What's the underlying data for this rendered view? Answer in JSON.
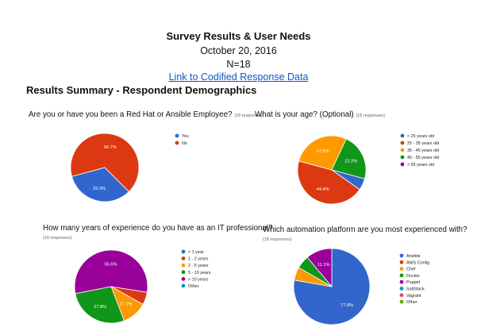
{
  "doc": {
    "title": "Survey Results & User Needs",
    "date": "October 20, 2016",
    "count": "N=18",
    "link_text": "Link to Codified Response Data",
    "section_heading": "Results Summary - Respondent Demographics"
  },
  "questions": [
    {
      "text": "Are you or have you been a Red Hat or Ansible Employee?",
      "responses": "(18 responses)"
    },
    {
      "text": "What is your age? (Optional)",
      "responses": "(18 responses)"
    },
    {
      "text": "How many years of experience do you have as an IT professional?",
      "responses": "(18 responses)"
    },
    {
      "text": "Which automation platform are you most experienced with?",
      "responses": "(18 responses)"
    }
  ],
  "chart_data": [
    {
      "type": "pie",
      "labels": [
        "Yes",
        "No"
      ],
      "values": [
        33.3,
        66.7
      ],
      "data_labels": [
        "33.3%",
        "66.7%"
      ],
      "colors": [
        "#3366cc",
        "#dc3912"
      ],
      "legend": "right"
    },
    {
      "type": "pie",
      "labels": [
        "< 25 years old",
        "25 - 35 years old",
        "35 - 45 years old",
        "45 - 55 years old",
        "> 55 years old"
      ],
      "values": [
        5.6,
        44.4,
        27.8,
        22.2,
        0
      ],
      "data_labels": [
        "",
        "44.4%",
        "27.8%",
        "22.2%",
        ""
      ],
      "colors": [
        "#3366cc",
        "#dc3912",
        "#ff9900",
        "#109618",
        "#990099"
      ],
      "legend": "right"
    },
    {
      "type": "pie",
      "labels": [
        "< 1 year",
        "1 - 2 years",
        "2 - 5 years",
        "5 - 10 years",
        "> 10 years",
        "Other"
      ],
      "values": [
        0,
        5.6,
        11.1,
        27.8,
        55.6,
        0
      ],
      "data_labels": [
        "",
        "",
        "11.1%",
        "27.8%",
        "55.6%",
        ""
      ],
      "colors": [
        "#3366cc",
        "#dc3912",
        "#ff9900",
        "#109618",
        "#990099",
        "#0099c6"
      ],
      "legend": "right"
    },
    {
      "type": "pie",
      "labels": [
        "Ansible",
        "AWS Config",
        "Chef",
        "Docker",
        "Puppet",
        "SaltStack",
        "Vagrant",
        "Other"
      ],
      "values": [
        77.8,
        0,
        5.6,
        5.6,
        11.1,
        0,
        0,
        0
      ],
      "data_labels": [
        "77.8%",
        "",
        "",
        "",
        "11.1%",
        "",
        "",
        ""
      ],
      "colors": [
        "#3366cc",
        "#dc3912",
        "#ff9900",
        "#109618",
        "#990099",
        "#0099c6",
        "#dd4477",
        "#66aa00"
      ],
      "legend": "right"
    }
  ]
}
